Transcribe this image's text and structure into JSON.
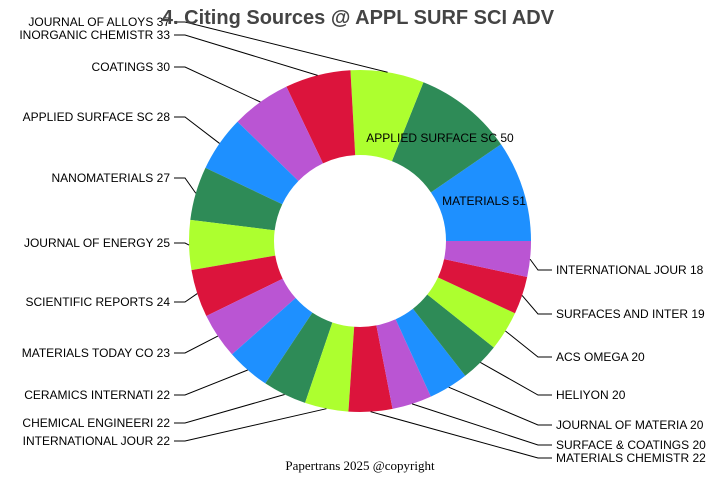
{
  "chart_data": {
    "type": "pie",
    "variant": "donut",
    "title": "4. Citing Sources @ APPL SURF SCI ADV",
    "footer": "Papertrans 2025 @copyright",
    "direction": "counterclockwise from 3 o'clock",
    "colors": [
      "#1e90ff",
      "#2e8b57",
      "#adff2f",
      "#dc143c",
      "#ba55d3"
    ],
    "slices": [
      {
        "label": "MATERIALS",
        "value": 51
      },
      {
        "label": "APPLIED SURFACE SC",
        "value": 50
      },
      {
        "label": "JOURNAL OF ALLOYS",
        "value": 37
      },
      {
        "label": "INORGANIC CHEMISTR",
        "value": 33
      },
      {
        "label": "COATINGS",
        "value": 30
      },
      {
        "label": "APPLIED SURFACE SC",
        "value": 28
      },
      {
        "label": "NANOMATERIALS",
        "value": 27
      },
      {
        "label": "JOURNAL OF ENERGY ",
        "value": 25
      },
      {
        "label": "SCIENTIFIC REPORTS",
        "value": 24
      },
      {
        "label": "MATERIALS TODAY CO",
        "value": 23
      },
      {
        "label": "CERAMICS INTERNATI",
        "value": 22
      },
      {
        "label": "CHEMICAL ENGINEERI",
        "value": 22
      },
      {
        "label": "INTERNATIONAL JOUR",
        "value": 22
      },
      {
        "label": "MATERIALS CHEMISTR",
        "value": 22
      },
      {
        "label": "SURFACE & COATINGS",
        "value": 20
      },
      {
        "label": "JOURNAL OF MATERIA",
        "value": 20
      },
      {
        "label": "HELIYON",
        "value": 20
      },
      {
        "label": "ACS OMEGA",
        "value": 20
      },
      {
        "label": "SURFACES AND INTER",
        "value": 19
      },
      {
        "label": "INTERNATIONAL JOUR",
        "value": 18
      }
    ]
  }
}
